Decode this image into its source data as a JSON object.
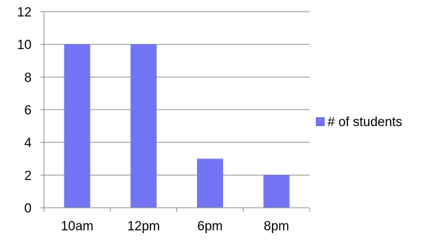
{
  "chart_data": {
    "type": "bar",
    "categories": [
      "10am",
      "12pm",
      "6pm",
      "8pm"
    ],
    "series": [
      {
        "name": "# of students",
        "values": [
          10,
          10,
          3,
          2
        ]
      }
    ],
    "title": "",
    "xlabel": "",
    "ylabel": "",
    "ylim": [
      0,
      12
    ],
    "yticks": [
      0,
      2,
      4,
      6,
      8,
      10,
      12
    ],
    "grid": true,
    "legend_position": "right",
    "colors": {
      "bar": "#7373f5",
      "grid": "#868686"
    }
  }
}
